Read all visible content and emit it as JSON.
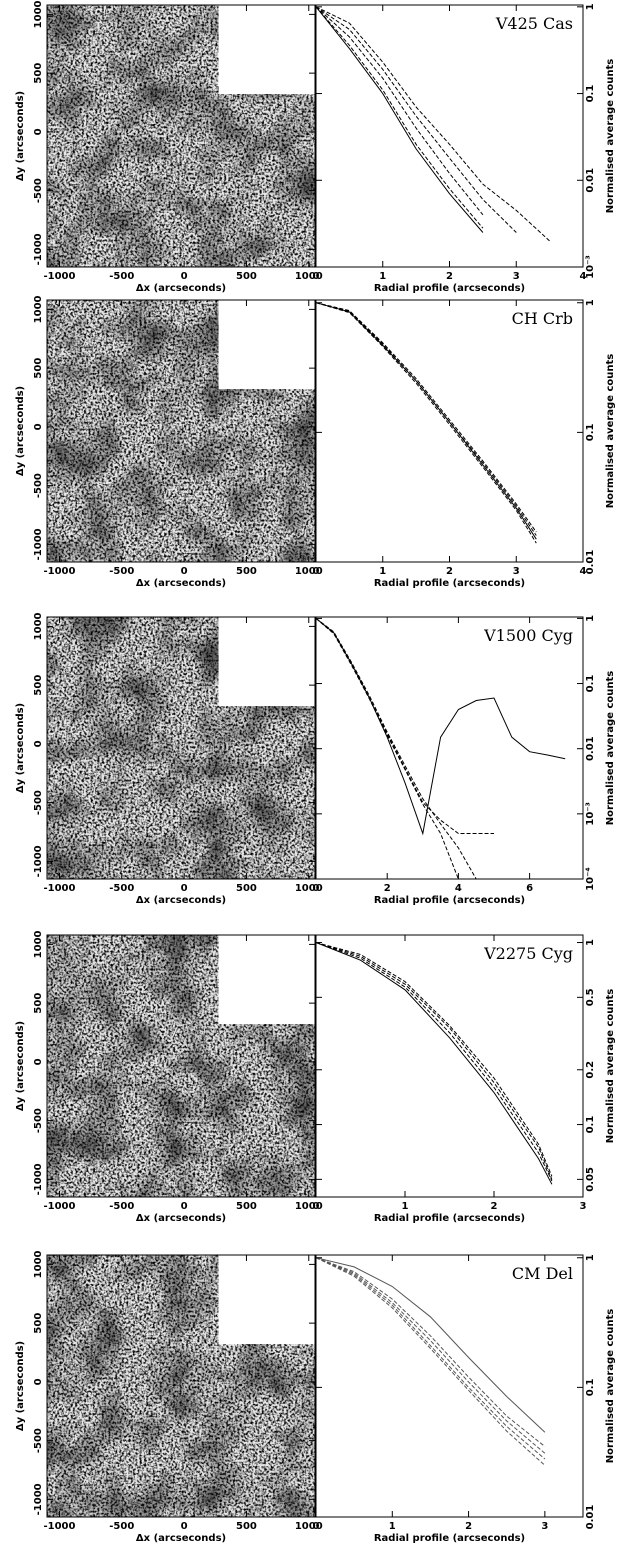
{
  "chart_data": [
    {
      "type": "image",
      "xlabel": "Δx (arcseconds)",
      "ylabel": "Δy (arcseconds)",
      "xlim": [
        -1100,
        1050
      ],
      "ylim": [
        -1150,
        1080
      ],
      "xticks": [
        -1000,
        -500,
        0,
        500,
        1000
      ],
      "yticks": [
        -1000,
        -500,
        0,
        500,
        1000
      ]
    },
    {
      "type": "line",
      "title": "V425 Cas",
      "xlabel": "Radial profile (arcseconds)",
      "ylabel": "Normalised average counts",
      "ylog": true,
      "xlim": [
        0,
        4
      ],
      "ylim": [
        0.001,
        1.05
      ],
      "xticks": [
        0,
        1,
        2,
        3,
        4
      ],
      "yticks": [
        1,
        0.1,
        0.01,
        {
          "value": 0.001,
          "label": "10⁻³"
        }
      ],
      "x": [
        0,
        0.5,
        1,
        1.5,
        2,
        2.5,
        3,
        3.5
      ],
      "series": [
        {
          "color": "#000",
          "dash": false,
          "values": [
            1,
            0.33,
            0.1,
            0.023,
            0.007,
            0.0025,
            null,
            null
          ]
        },
        {
          "color": "#000",
          "dash": true,
          "values": [
            1,
            0.36,
            0.11,
            0.026,
            0.008,
            0.0028,
            null,
            null
          ]
        },
        {
          "color": "#000",
          "dash": true,
          "values": [
            1,
            0.45,
            0.15,
            0.04,
            0.012,
            0.004,
            null,
            null
          ]
        },
        {
          "color": "#000",
          "dash": true,
          "values": [
            1,
            0.55,
            0.19,
            0.055,
            0.018,
            0.006,
            0.0025,
            null
          ]
        },
        {
          "color": "#000",
          "dash": true,
          "values": [
            1,
            0.65,
            0.23,
            0.07,
            0.026,
            0.009,
            0.0045,
            0.002
          ]
        }
      ]
    },
    {
      "type": "image",
      "xlabel": "Δx (arcseconds)",
      "ylabel": "Δy (arcseconds)",
      "xlim": [
        -1100,
        1050
      ],
      "ylim": [
        -1150,
        1080
      ],
      "xticks": [
        -1000,
        -500,
        0,
        500,
        1000
      ],
      "yticks": [
        -1000,
        -500,
        0,
        500,
        1000
      ]
    },
    {
      "type": "line",
      "title": "CH Crb",
      "xlabel": "Radial profile (arcseconds)",
      "ylabel": "Normalised average counts",
      "ylog": true,
      "xlim": [
        0,
        4
      ],
      "ylim": [
        0.01,
        1.05
      ],
      "xticks": [
        0,
        1,
        2,
        3,
        4
      ],
      "yticks": [
        1,
        0.1,
        0.01
      ],
      "x": [
        0,
        0.5,
        1,
        1.5,
        2,
        2.5,
        3,
        3.3
      ],
      "series": [
        {
          "color": "#000",
          "dash": false,
          "values": [
            1,
            0.85,
            0.47,
            0.25,
            0.12,
            0.056,
            0.026,
            0.015
          ]
        },
        {
          "color": "#000",
          "dash": true,
          "values": [
            1,
            0.86,
            0.48,
            0.25,
            0.12,
            0.058,
            0.027,
            0.016
          ]
        },
        {
          "color": "#000",
          "dash": true,
          "values": [
            1,
            0.84,
            0.46,
            0.24,
            0.115,
            0.054,
            0.025,
            0.014
          ]
        },
        {
          "color": "#000",
          "dash": true,
          "values": [
            1,
            0.87,
            0.49,
            0.26,
            0.125,
            0.06,
            0.028,
            0.017
          ]
        }
      ]
    },
    {
      "type": "image",
      "xlabel": "Δx (arcseconds)",
      "ylabel": "Δy (arcseconds)",
      "xlim": [
        -1100,
        1050
      ],
      "ylim": [
        -1150,
        1080
      ],
      "xticks": [
        -1000,
        -500,
        0,
        500,
        1000
      ],
      "yticks": [
        -1000,
        -500,
        0,
        500,
        1000
      ]
    },
    {
      "type": "line",
      "title": "V1500 Cyg",
      "xlabel": "Radial profile (arcseconds)",
      "ylabel": "Normalised average counts",
      "ylog": true,
      "xlim": [
        0,
        7.5
      ],
      "ylim": [
        0.0001,
        1.05
      ],
      "xticks": [
        0,
        2,
        4,
        6
      ],
      "yticks": [
        1,
        0.1,
        0.01,
        {
          "value": 0.001,
          "label": "10⁻³"
        },
        {
          "value": 0.0001,
          "label": "10⁻⁴"
        }
      ],
      "x": [
        0,
        0.5,
        1,
        1.5,
        2,
        2.5,
        3,
        3.5,
        4,
        4.5,
        5,
        5.5,
        6,
        6.5,
        7
      ],
      "series": [
        {
          "color": "#000",
          "dash": false,
          "values": [
            1,
            0.6,
            0.2,
            0.06,
            0.015,
            0.003,
            0.0005,
            0.015,
            0.04,
            0.055,
            0.06,
            0.015,
            0.009,
            0.008,
            0.007
          ]
        },
        {
          "color": "#000",
          "dash": true,
          "values": [
            1,
            0.6,
            0.2,
            0.06,
            0.017,
            0.005,
            0.0015,
            0.0008,
            0.0005,
            0.0005,
            0.0005,
            null,
            null,
            null,
            null
          ]
        },
        {
          "color": "#000",
          "dash": true,
          "values": [
            1,
            0.62,
            0.21,
            0.065,
            0.018,
            0.0055,
            0.0017,
            0.0007,
            0.0003,
            0.0001,
            null,
            null,
            null,
            null,
            null
          ]
        },
        {
          "color": "#000",
          "dash": true,
          "values": [
            1,
            0.58,
            0.19,
            0.058,
            0.016,
            0.0048,
            0.0014,
            0.0005,
            0.0001,
            null,
            null,
            null,
            null,
            null,
            null
          ]
        }
      ]
    },
    {
      "type": "image",
      "xlabel": "Δx (arcseconds)",
      "ylabel": "Δy (arcseconds)",
      "xlim": [
        -1100,
        1050
      ],
      "ylim": [
        -1150,
        1080
      ],
      "xticks": [
        -1000,
        -500,
        0,
        500,
        1000
      ],
      "yticks": [
        -1000,
        -500,
        0,
        500,
        1000
      ]
    },
    {
      "type": "line",
      "title": "V2275 Cyg",
      "xlabel": "Radial profile (arcseconds)",
      "ylabel": "Normalised average counts",
      "ylog": true,
      "xlim": [
        0,
        3
      ],
      "ylim": [
        0.04,
        1.1
      ],
      "xticks": [
        0,
        1,
        2,
        3
      ],
      "yticks": [
        1,
        0.5,
        0.2,
        0.1,
        0.05
      ],
      "x": [
        0,
        0.5,
        1,
        1.5,
        2,
        2.5,
        2.65
      ],
      "series": [
        {
          "color": "#000",
          "dash": false,
          "values": [
            1,
            0.8,
            0.55,
            0.3,
            0.15,
            0.065,
            0.047
          ]
        },
        {
          "color": "#000",
          "dash": true,
          "values": [
            1,
            0.82,
            0.57,
            0.32,
            0.16,
            0.07,
            0.049
          ]
        },
        {
          "color": "#000",
          "dash": true,
          "values": [
            1,
            0.84,
            0.59,
            0.34,
            0.17,
            0.075,
            0.05
          ]
        },
        {
          "color": "#000",
          "dash": true,
          "values": [
            1,
            0.86,
            0.61,
            0.35,
            0.18,
            0.078,
            0.052
          ]
        }
      ]
    },
    {
      "type": "image",
      "xlabel": "Δx (arcseconds)",
      "ylabel": "Δy (arcseconds)",
      "xlim": [
        -1100,
        1050
      ],
      "ylim": [
        -1150,
        1080
      ],
      "xticks": [
        -1000,
        -500,
        0,
        500,
        1000
      ],
      "yticks": [
        -1000,
        -500,
        0,
        500,
        1000
      ]
    },
    {
      "type": "line",
      "title": "CM Del",
      "xlabel": "Radial profile (arcseconds)",
      "ylabel": "Normalised average counts",
      "ylog": true,
      "xlim": [
        0,
        3.5
      ],
      "ylim": [
        0.01,
        1.05
      ],
      "xticks": [
        0,
        1,
        2,
        3
      ],
      "yticks": [
        1,
        0.1,
        0.01
      ],
      "x": [
        0,
        0.5,
        1,
        1.5,
        2,
        2.5,
        3
      ],
      "series": [
        {
          "color": "#555",
          "dash": false,
          "values": [
            1,
            0.85,
            0.6,
            0.35,
            0.17,
            0.085,
            0.045
          ]
        },
        {
          "color": "#555",
          "dash": true,
          "values": [
            1,
            0.78,
            0.48,
            0.25,
            0.12,
            0.06,
            0.035
          ]
        },
        {
          "color": "#555",
          "dash": true,
          "values": [
            1,
            0.76,
            0.45,
            0.23,
            0.11,
            0.055,
            0.031
          ]
        },
        {
          "color": "#555",
          "dash": true,
          "values": [
            1,
            0.74,
            0.43,
            0.21,
            0.1,
            0.05,
            0.028
          ]
        },
        {
          "color": "#555",
          "dash": true,
          "values": [
            1,
            0.72,
            0.41,
            0.2,
            0.095,
            0.046,
            0.025
          ]
        }
      ]
    }
  ]
}
